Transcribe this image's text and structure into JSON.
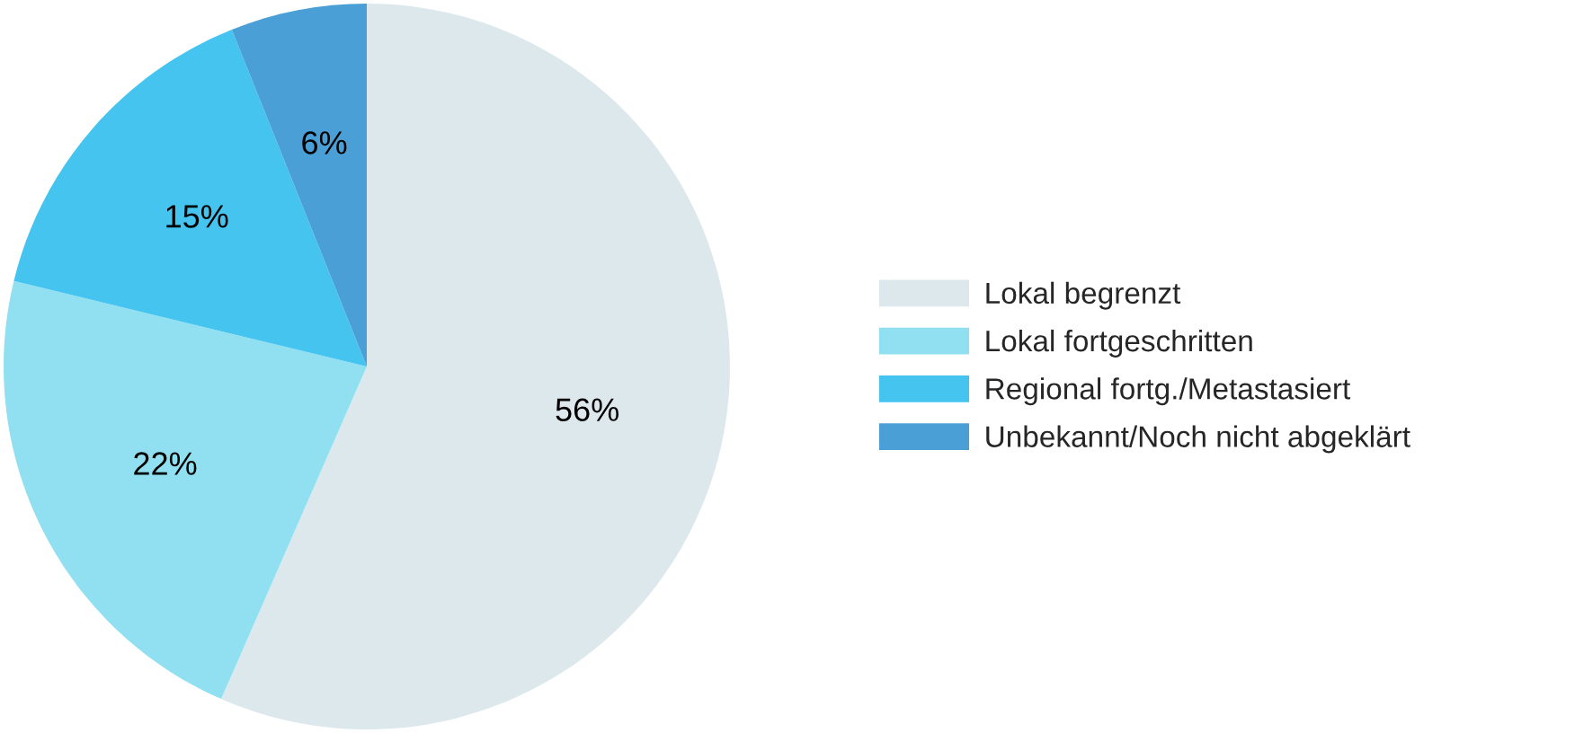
{
  "chart_data": {
    "type": "pie",
    "categories": [
      "Lokal begrenzt",
      "Lokal fortgeschritten",
      "Regional fortg./Metastasiert",
      "Unbekannt/Noch nicht abgeklärt"
    ],
    "values": [
      56,
      22,
      15,
      6
    ],
    "colors": [
      "#dde8ed",
      "#90e0f2",
      "#45c4f0",
      "#4a9fd6"
    ],
    "value_labels": [
      "56%",
      "22%",
      "15%",
      "6%"
    ],
    "legend": "right"
  }
}
